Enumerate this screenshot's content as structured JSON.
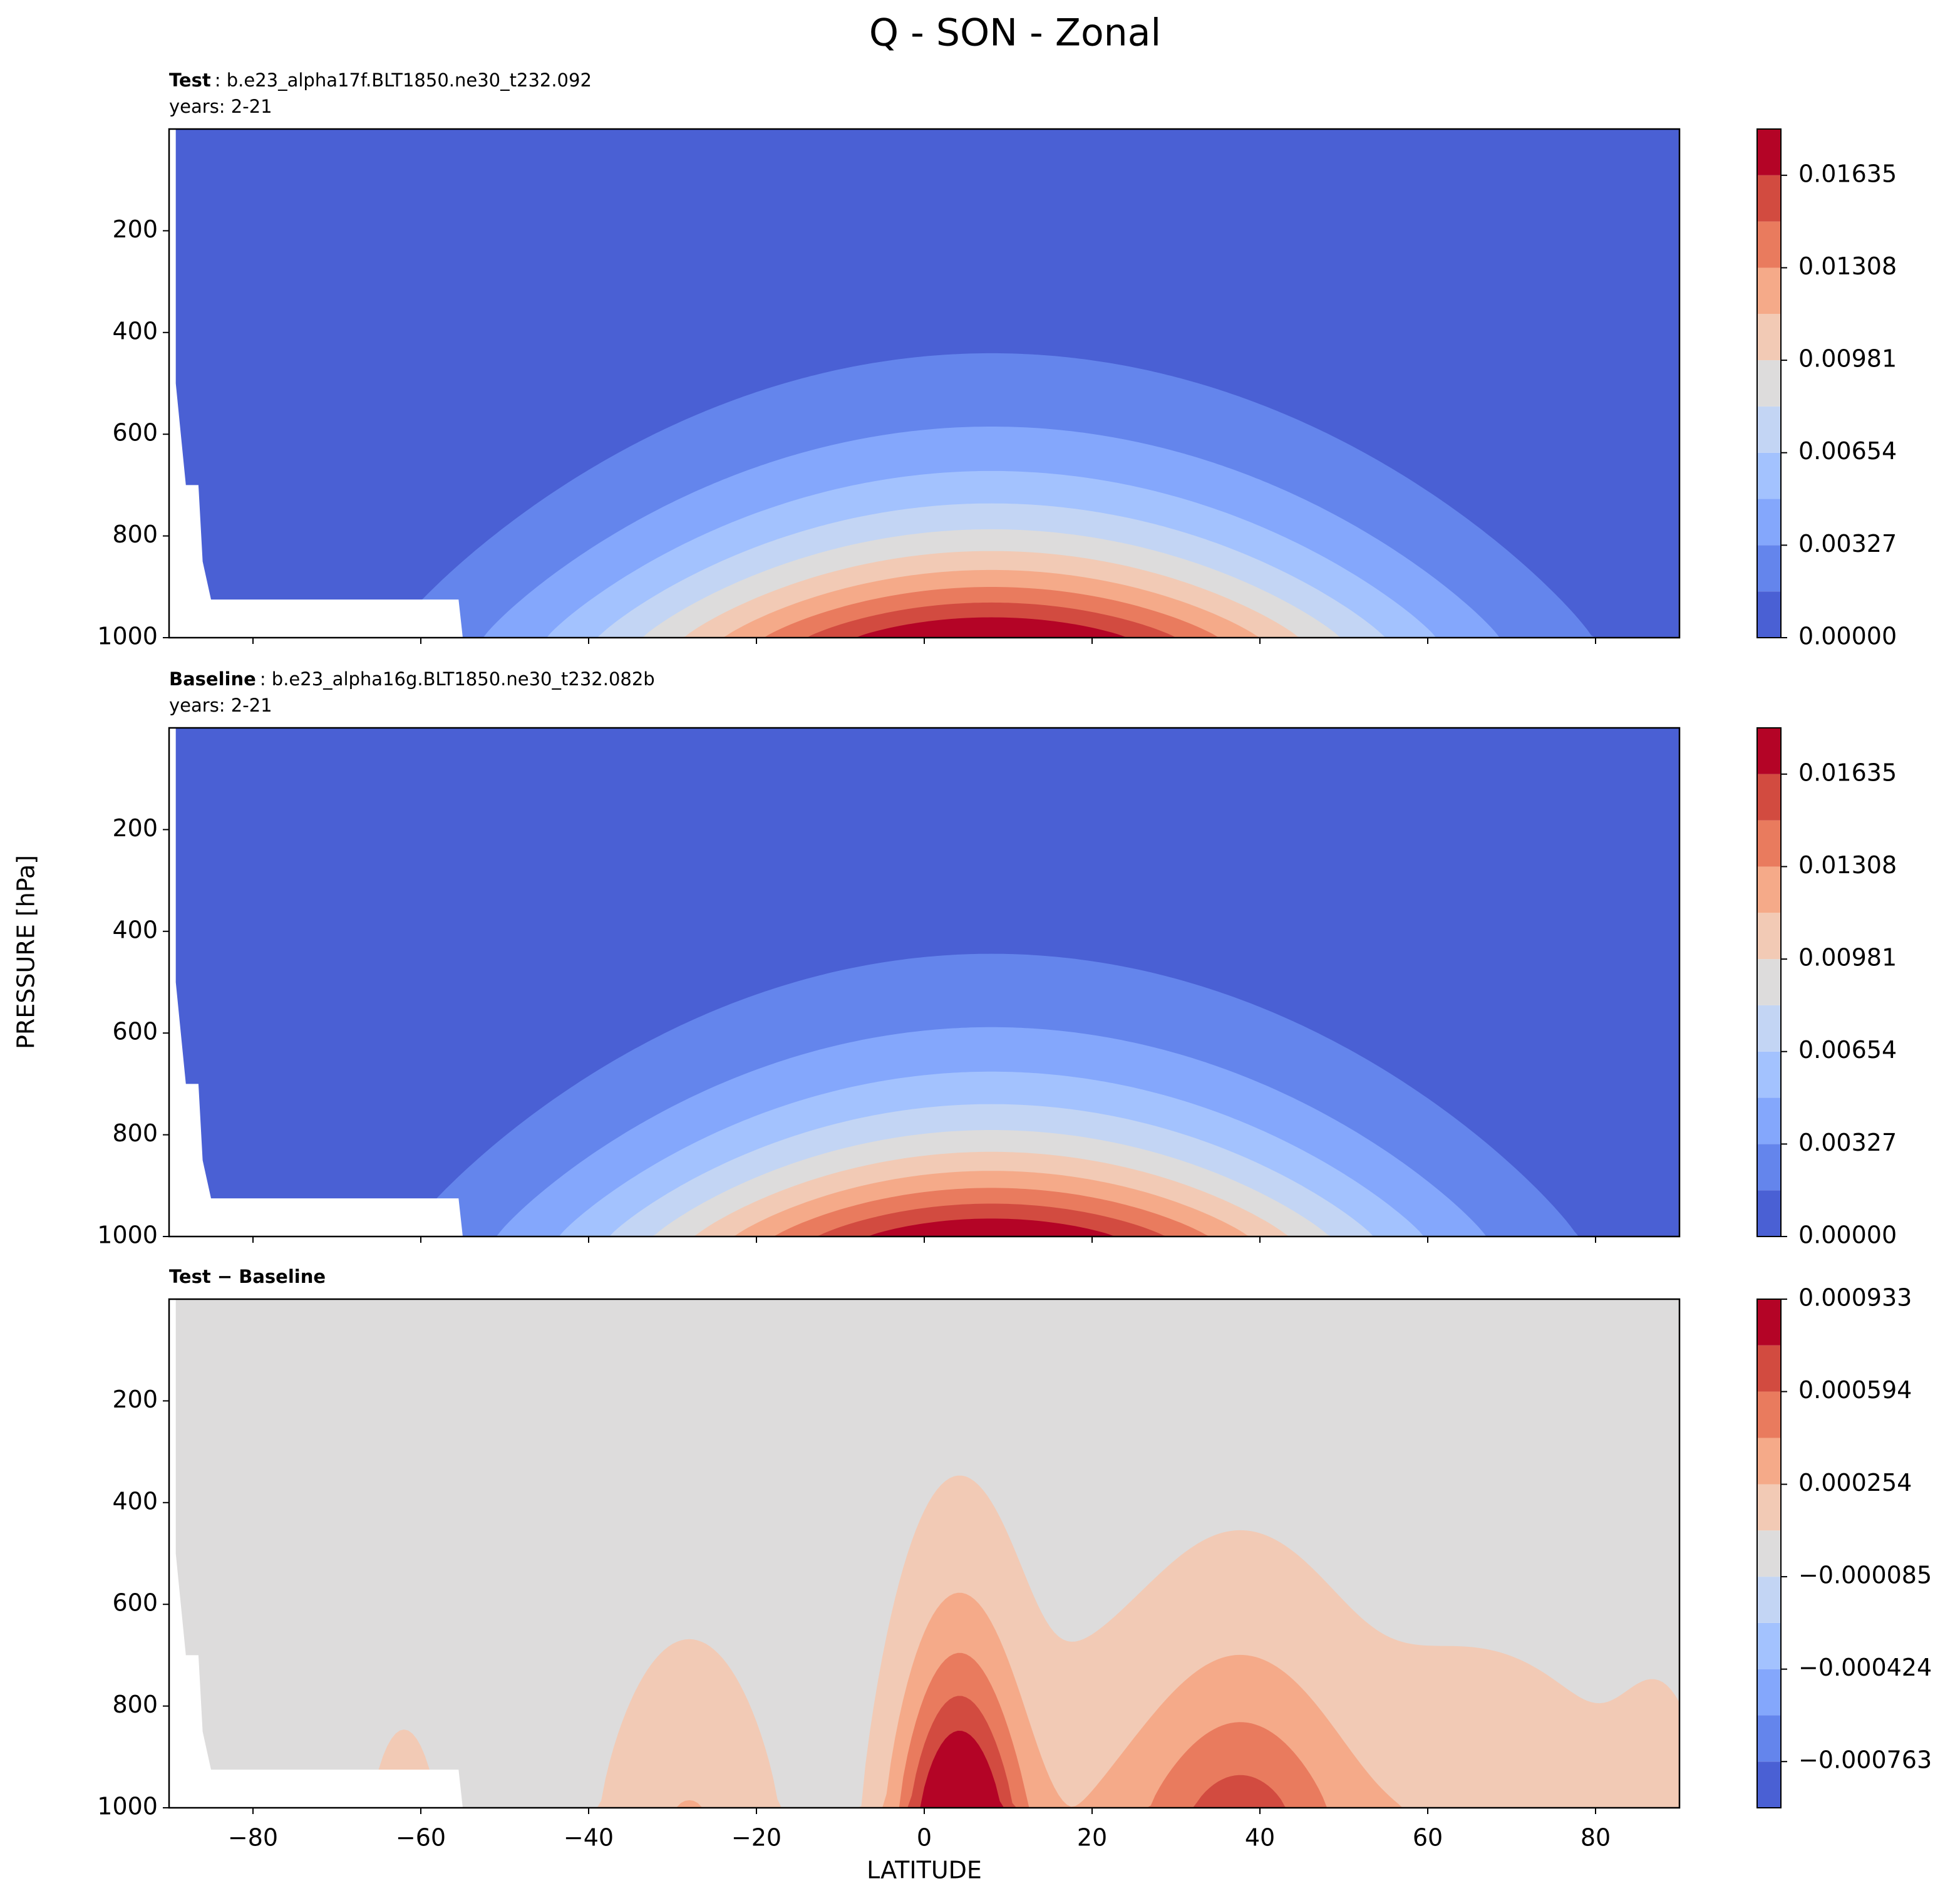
{
  "chart_data": {
    "type": "contour",
    "title": "Q - SON - Zonal",
    "xlabel": "LATITUDE",
    "ylabel": "PRESSURE [hPa]",
    "xlim": [
      -90,
      90
    ],
    "xticks": [
      {
        "value": -80,
        "label": "−80"
      },
      {
        "value": -60,
        "label": "−60"
      },
      {
        "value": -40,
        "label": "−40"
      },
      {
        "value": -20,
        "label": "−20"
      },
      0,
      20,
      40,
      60,
      80
    ],
    "ylim": [
      1000,
      0
    ],
    "yticks": [
      200,
      400,
      600,
      800,
      1000
    ],
    "colors": [
      "#4a60d4",
      "#6485ec",
      "#84a7fc",
      "#a3c2fe",
      "#c3d5f4",
      "#dddcdc",
      "#f2cab5",
      "#f5aa89",
      "#e97b5e",
      "#d24b40",
      "#b40426"
    ],
    "panels": [
      {
        "name_bold": "Test",
        "name": ": b.e23_alpha17f.BLT1850.ne30_t232.092",
        "subtitle": "years: 2-21",
        "levels": [
          0,
          0.001635,
          0.00327,
          0.004905,
          0.00654,
          0.008175,
          0.00981,
          0.011445,
          0.01308,
          0.014715,
          0.01635,
          0.017985
        ],
        "cbar_ticks": [
          {
            "value": 0,
            "label": "0.00000"
          },
          0.00327,
          0.00654,
          0.00981,
          0.01308,
          0.01635
        ]
      },
      {
        "name_bold": "Baseline",
        "name": ": b.e23_alpha16g.BLT1850.ne30_t232.082b",
        "subtitle": "years: 2-21",
        "levels": [
          0,
          0.001635,
          0.00327,
          0.004905,
          0.00654,
          0.008175,
          0.00981,
          0.011445,
          0.01308,
          0.014715,
          0.01635,
          0.017985
        ],
        "cbar_ticks": [
          {
            "value": 0,
            "label": "0.00000"
          },
          0.00327,
          0.00654,
          0.00981,
          0.01308,
          0.01635
        ]
      },
      {
        "name_bold": "Test − Baseline",
        "levels": [
          -0.0009325,
          -0.000763,
          -0.0005935,
          -0.000424,
          -0.0002545,
          -8.5e-05,
          8.45e-05,
          0.000254,
          0.000424,
          0.000594,
          0.0007635,
          0.000933
        ],
        "cbar_ticks": [
          {
            "value": -0.000763,
            "label": "−0.000763"
          },
          {
            "value": -0.000424,
            "label": "−0.000424"
          },
          {
            "value": -8.5e-05,
            "label": "−0.000085"
          },
          0.000254,
          0.000594,
          0.000933
        ]
      }
    ]
  }
}
